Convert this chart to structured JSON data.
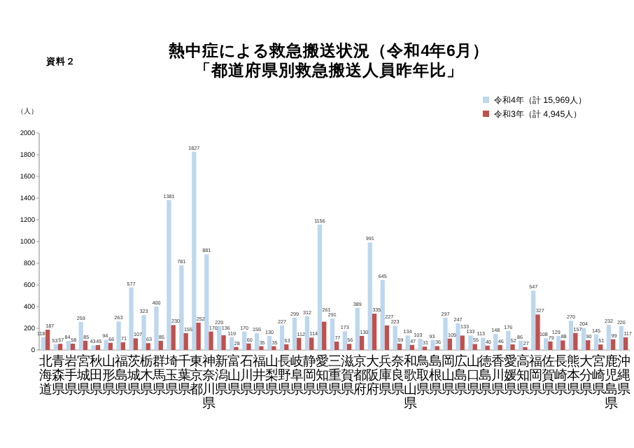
{
  "chart_data": {
    "type": "bar",
    "title": "熱中症による救急搬送状況（令和4年6月）",
    "subtitle": "「都道府県別救急搬送人員昨年比」",
    "ylabel": "（人）",
    "annotations": [
      "資料２"
    ],
    "categories": [
      "北海道",
      "青森県",
      "岩手県",
      "宮城県",
      "秋田県",
      "山形県",
      "福島県",
      "茨城県",
      "栃木県",
      "群馬県",
      "埼玉県",
      "千葉県",
      "東京都",
      "神奈川県",
      "新潟県",
      "富山県",
      "石川県",
      "福井県",
      "山梨県",
      "長野県",
      "岐阜県",
      "静岡県",
      "愛知県",
      "三重県",
      "滋賀県",
      "京都府",
      "大阪府",
      "兵庫県",
      "奈良県",
      "和歌山県",
      "鳥取県",
      "島根県",
      "岡山県",
      "広島県",
      "山口県",
      "徳島県",
      "香川県",
      "愛媛県",
      "高知県",
      "福岡県",
      "佐賀県",
      "長崎県",
      "熊本県",
      "大分県",
      "宮崎県",
      "鹿児島県",
      "沖縄県"
    ],
    "series": [
      {
        "name": "令和4年（計 15,969人）",
        "color": "#bdd7ee",
        "values": [
          118,
          53,
          84,
          259,
          43,
          94,
          263,
          577,
          323,
          400,
          1381,
          781,
          1827,
          881,
          220,
          119,
          170,
          155,
          130,
          227,
          299,
          312,
          1156,
          291,
          173,
          389,
          991,
          645,
          223,
          134,
          103,
          93,
          297,
          247,
          133,
          113,
          148,
          176,
          86,
          547,
          108,
          129,
          270,
          204,
          145,
          232,
          220
        ]
      },
      {
        "name": "令和3年（計 4,945人）",
        "color": "#c0504d",
        "values": [
          187,
          57,
          58,
          85,
          45,
          66,
          71,
          107,
          63,
          85,
          230,
          155,
          252,
          170,
          136,
          28,
          60,
          35,
          35,
          53,
          112,
          114,
          261,
          77,
          56,
          130,
          335,
          227,
          59,
          47,
          31,
          36,
          105,
          133,
          55,
          40,
          46,
          52,
          27,
          327,
          79,
          88,
          157,
          90,
          51,
          99,
          117
        ]
      }
    ],
    "ylim": [
      0,
      2000
    ],
    "yticks": [
      0,
      200,
      400,
      600,
      800,
      1000,
      1200,
      1400,
      1600,
      1800,
      2000
    ],
    "grid": false,
    "legend": "top right",
    "data_labels": true
  }
}
